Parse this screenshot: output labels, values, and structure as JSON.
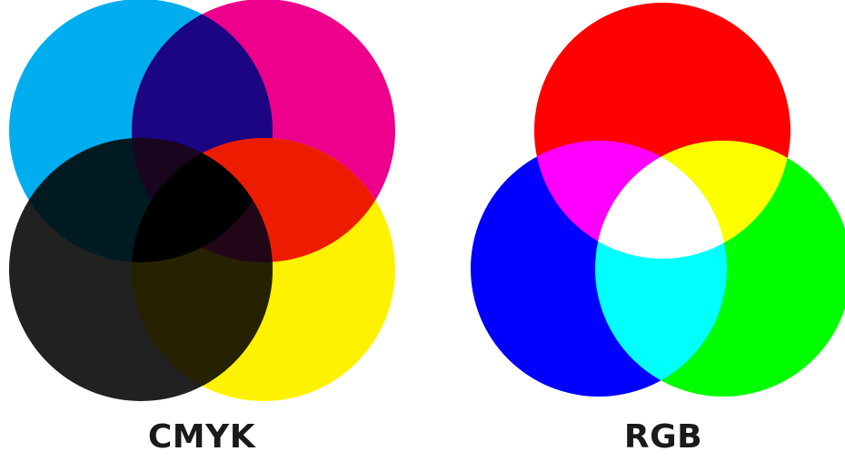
{
  "cmyk": {
    "label": "CMYK",
    "circles": [
      {
        "name": "cyan",
        "color": "#00ADEE"
      },
      {
        "name": "magenta",
        "color": "#EC008C"
      },
      {
        "name": "yellow",
        "color": "#FFF200"
      },
      {
        "name": "black",
        "color": "#000000"
      }
    ],
    "overlaps": [
      {
        "name": "cyan-magenta",
        "color": "#1C0582"
      },
      {
        "name": "magenta-yellow",
        "color": "#ED1C00"
      },
      {
        "name": "black-over-cyan",
        "color": "#001A22"
      },
      {
        "name": "black-over-yellow",
        "color": "#262100"
      },
      {
        "name": "black-over-magenta",
        "color": "#21001E"
      },
      {
        "name": "center",
        "color": "#000000"
      }
    ]
  },
  "rgb": {
    "label": "RGB",
    "circles": [
      {
        "name": "red",
        "color": "#FF0000"
      },
      {
        "name": "green",
        "color": "#00FF00"
      },
      {
        "name": "blue",
        "color": "#0000FF"
      }
    ],
    "overlaps": [
      {
        "name": "red-blue",
        "color": "#FF00FF"
      },
      {
        "name": "red-green",
        "color": "#FFFF00"
      },
      {
        "name": "green-blue",
        "color": "#00FFFF"
      },
      {
        "name": "center",
        "color": "#FFFFFF"
      }
    ]
  }
}
